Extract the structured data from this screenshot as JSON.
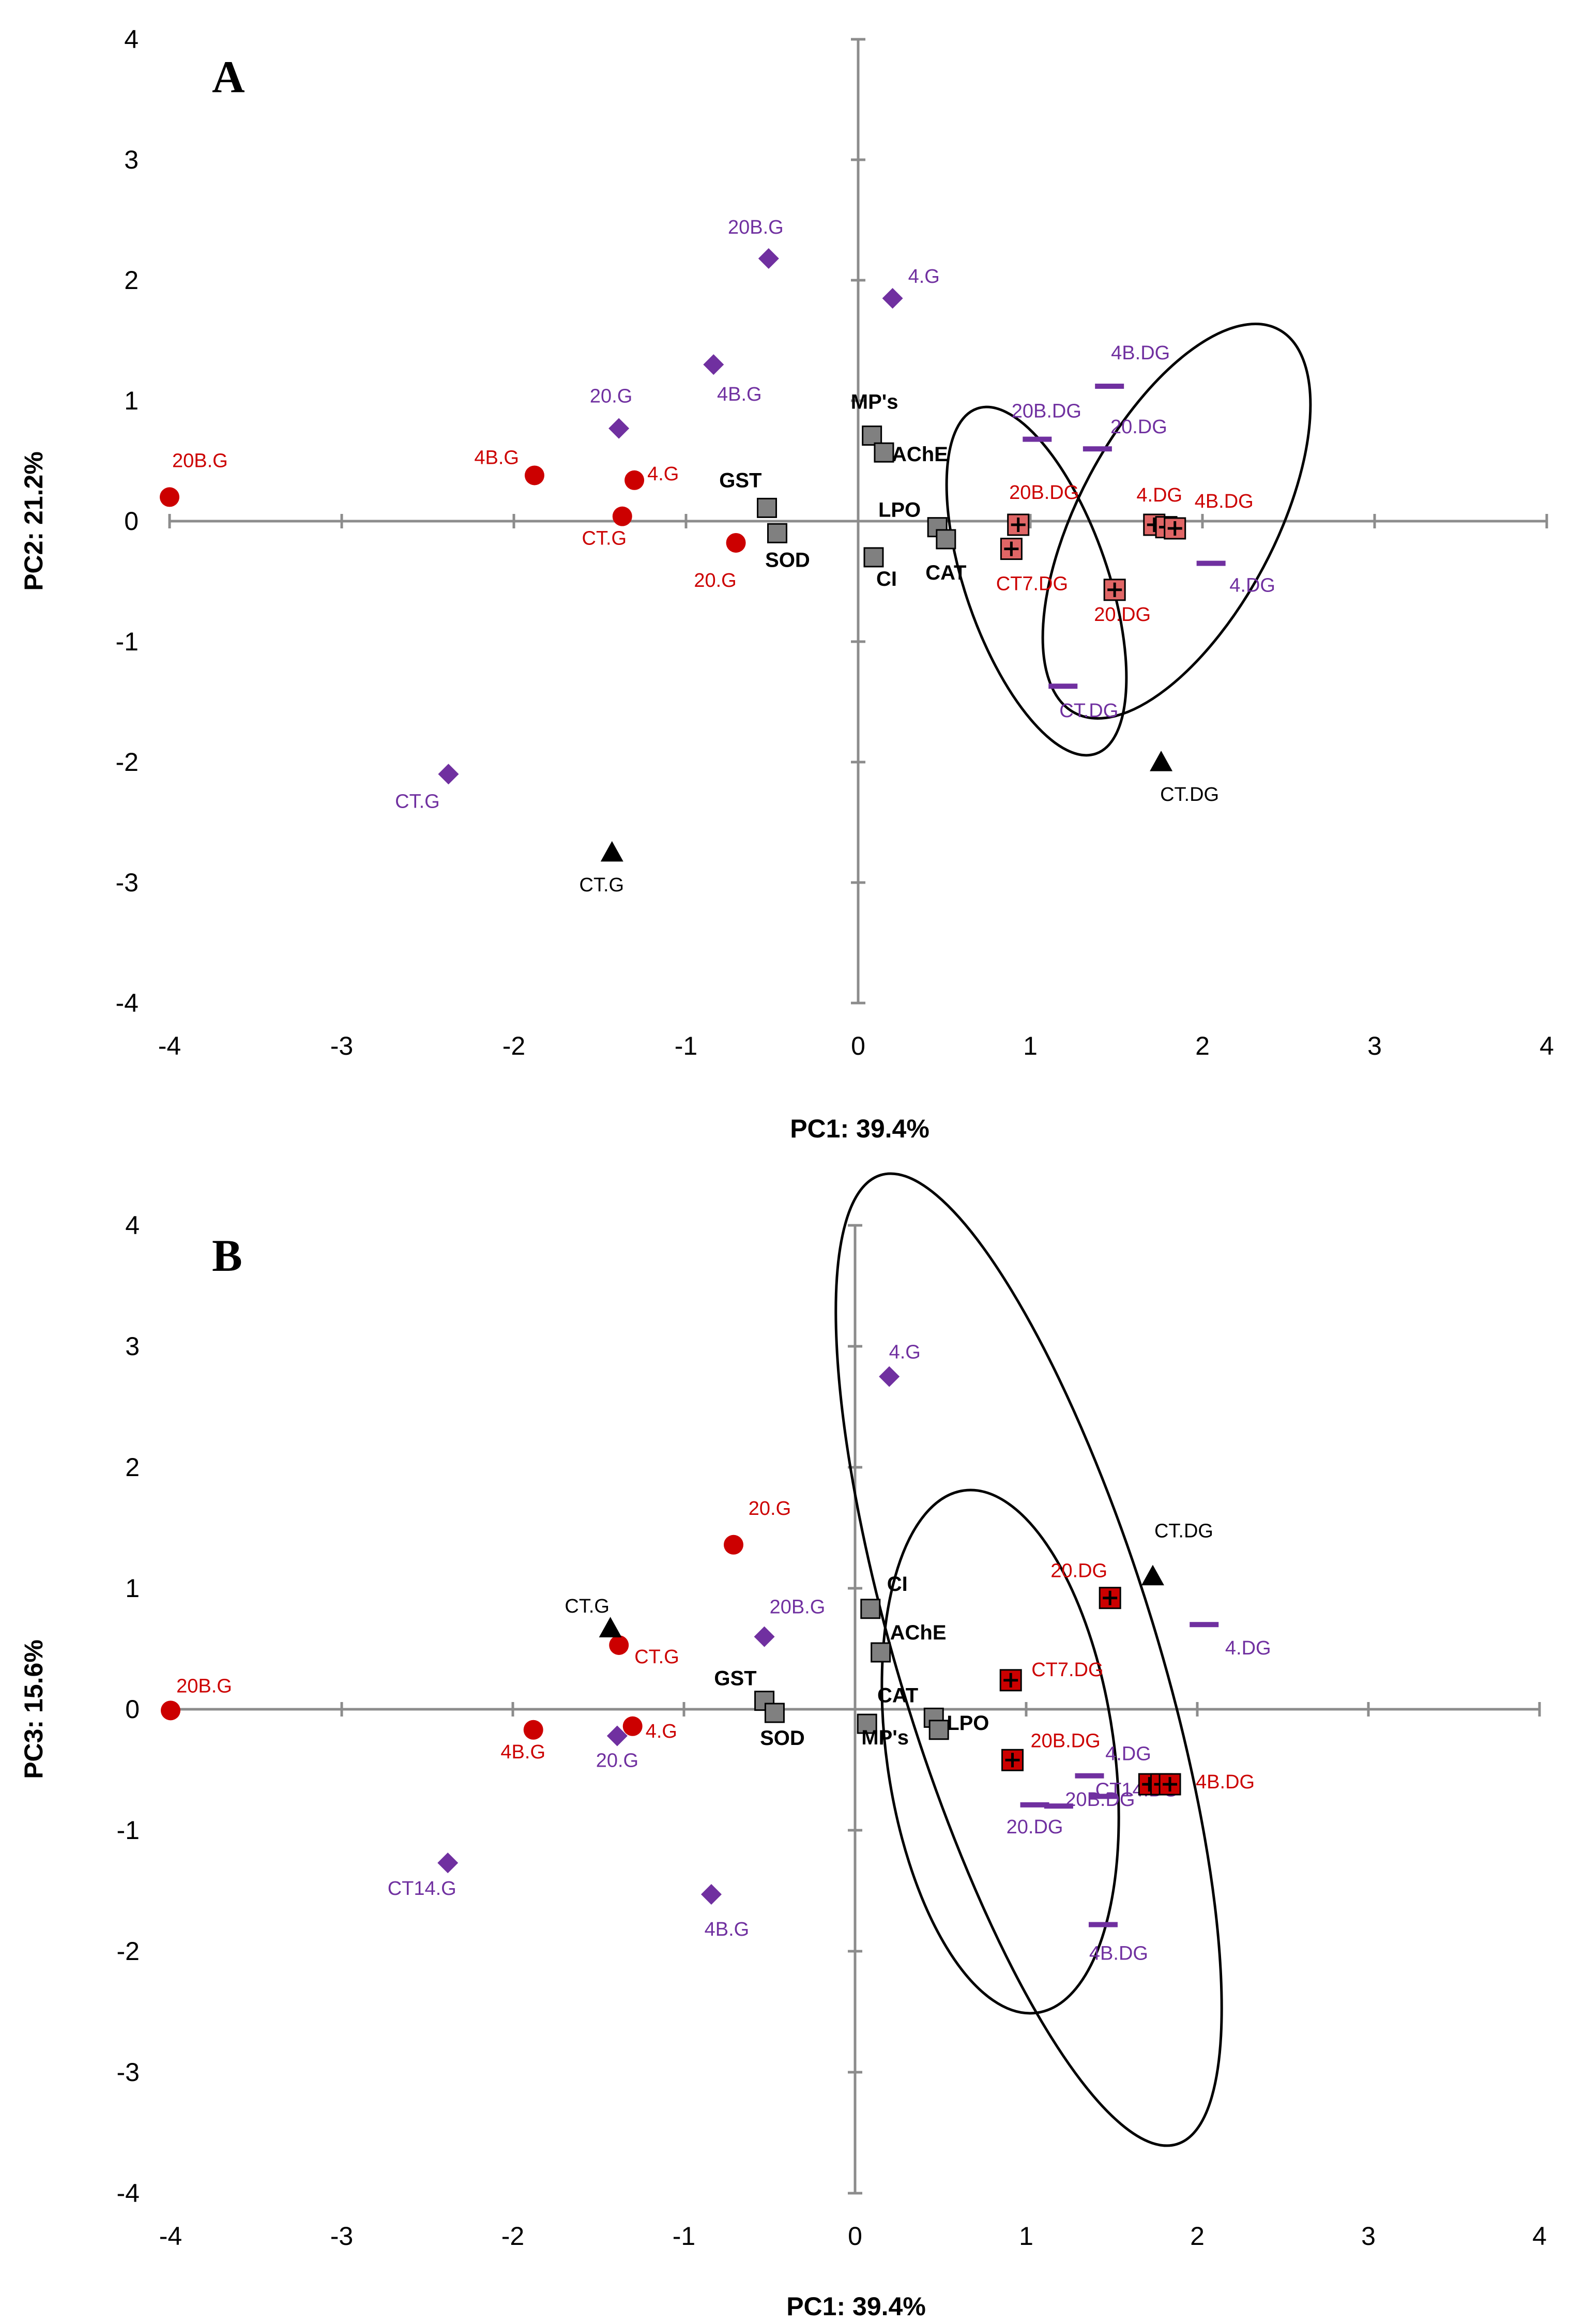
{
  "chart_data": [
    {
      "panel": "A",
      "type": "scatter",
      "xlabel": "PC1: 39.4%",
      "ylabel": "PC2: 21.2%",
      "xlim": [
        -4,
        4
      ],
      "ylim": [
        -4,
        4
      ],
      "xticks": [
        -4,
        -3,
        -2,
        -1,
        0,
        1,
        2,
        3,
        4
      ],
      "yticks": [
        -4,
        -3,
        -2,
        -1,
        0,
        1,
        2,
        3,
        4
      ],
      "colors": {
        "red": "#cc0000",
        "purple": "#7030a0",
        "black": "#000000",
        "gray": "#808080",
        "pinkbox": "#e06666"
      },
      "series": [
        {
          "name": "red circles",
          "marker": "circle",
          "color": "#cc0000",
          "points": [
            {
              "label": "20B.G",
              "x": -4.0,
              "y": 0.2
            },
            {
              "label": "4B.G",
              "x": -1.88,
              "y": 0.38
            },
            {
              "label": "4.G",
              "x": -1.3,
              "y": 0.34
            },
            {
              "label": "CT.G",
              "x": -1.37,
              "y": 0.04
            },
            {
              "label": "20.G",
              "x": -0.71,
              "y": -0.18
            }
          ]
        },
        {
          "name": "purple diamonds",
          "marker": "diamond",
          "color": "#7030a0",
          "points": [
            {
              "label": "20B.G",
              "x": -0.52,
              "y": 2.18
            },
            {
              "label": "4.G",
              "x": 0.2,
              "y": 1.85
            },
            {
              "label": "4B.G",
              "x": -0.84,
              "y": 1.3
            },
            {
              "label": "20.G",
              "x": -1.39,
              "y": 0.77
            },
            {
              "label": "CT.G",
              "x": -2.38,
              "y": -2.1
            }
          ]
        },
        {
          "name": "purple dashes",
          "marker": "dash",
          "color": "#7030a0",
          "points": [
            {
              "label": "4B.DG",
              "x": 1.46,
              "y": 1.12
            },
            {
              "label": "20B.DG",
              "x": 1.04,
              "y": 0.68
            },
            {
              "label": "20.DG",
              "x": 1.39,
              "y": 0.6
            },
            {
              "label": "4.DG",
              "x": 2.05,
              "y": -0.35
            },
            {
              "label": "CT.DG",
              "x": 1.19,
              "y": -1.37
            }
          ]
        },
        {
          "name": "black triangles",
          "marker": "triangle",
          "color": "#000000",
          "points": [
            {
              "label": "CT.DG",
              "x": 1.76,
              "y": -2.0
            },
            {
              "label": "CT.G",
              "x": -1.43,
              "y": -2.75
            }
          ]
        },
        {
          "name": "red plus boxes",
          "marker": "plusbox",
          "color": "#e06666",
          "points": [
            {
              "label": "20B.DG",
              "x": 0.93,
              "y": -0.03
            },
            {
              "label": "CT7.DG",
              "x": 0.89,
              "y": -0.23
            },
            {
              "label": "4.DG",
              "x": 1.72,
              "y": -0.03
            },
            {
              "label": "",
              "x": 1.79,
              "y": -0.05
            },
            {
              "label": "4B.DG",
              "x": 1.84,
              "y": -0.06
            },
            {
              "label": "20.DG",
              "x": 1.49,
              "y": -0.57
            }
          ]
        },
        {
          "name": "variables",
          "marker": "square",
          "color": "#808080",
          "points": [
            {
              "label": "MP's",
              "x": 0.08,
              "y": 0.71
            },
            {
              "label": "AChE",
              "x": 0.15,
              "y": 0.57
            },
            {
              "label": "GST",
              "x": -0.53,
              "y": 0.11
            },
            {
              "label": "SOD",
              "x": -0.47,
              "y": -0.1
            },
            {
              "label": "LPO",
              "x": 0.46,
              "y": -0.05
            },
            {
              "label": "CAT",
              "x": 0.51,
              "y": -0.15
            },
            {
              "label": "CI",
              "x": 0.09,
              "y": -0.3
            }
          ]
        }
      ]
    },
    {
      "panel": "B",
      "type": "scatter",
      "xlabel": "PC1: 39.4%",
      "ylabel": "PC3: 15.6%",
      "xlim": [
        -4,
        4
      ],
      "ylim": [
        -4,
        4
      ],
      "xticks": [
        -4,
        -3,
        -2,
        -1,
        0,
        1,
        2,
        3,
        4
      ],
      "yticks": [
        -4,
        -3,
        -2,
        -1,
        0,
        1,
        2,
        3,
        4
      ],
      "colors": {
        "red": "#cc0000",
        "purple": "#7030a0",
        "black": "#000000",
        "gray": "#808080",
        "redbox": "#cc0000"
      },
      "series": [
        {
          "name": "red circles",
          "marker": "circle",
          "color": "#cc0000",
          "points": [
            {
              "label": "20B.G",
              "x": -4.0,
              "y": -0.01
            },
            {
              "label": "20.G",
              "x": -0.71,
              "y": 1.36
            },
            {
              "label": "CT.G",
              "x": -1.38,
              "y": 0.53
            },
            {
              "label": "4B.G",
              "x": -1.88,
              "y": -0.17
            },
            {
              "label": "4.G",
              "x": -1.3,
              "y": -0.14
            }
          ]
        },
        {
          "name": "purple diamonds",
          "marker": "diamond",
          "color": "#7030a0",
          "points": [
            {
              "label": "4.G",
              "x": 0.2,
              "y": 2.75
            },
            {
              "label": "20B.G",
              "x": -0.53,
              "y": 0.6
            },
            {
              "label": "20.G",
              "x": -1.39,
              "y": -0.22
            },
            {
              "label": "CT14.G",
              "x": -2.38,
              "y": -1.27
            },
            {
              "label": "4B.G",
              "x": -0.84,
              "y": -1.53
            }
          ]
        },
        {
          "name": "purple dashes",
          "marker": "dash",
          "color": "#7030a0",
          "points": [
            {
              "label": "4.DG",
              "x": 2.04,
              "y": 0.7
            },
            {
              "label": "4.DG",
              "x": 1.37,
              "y": -0.55
            },
            {
              "label": "20.DG",
              "x": 1.05,
              "y": -0.79
            },
            {
              "label": "20B.DG",
              "x": 1.19,
              "y": -0.8
            },
            {
              "label": "CT14.DG",
              "x": 1.45,
              "y": -0.72
            },
            {
              "label": "4B.DG",
              "x": 1.45,
              "y": -1.78
            }
          ]
        },
        {
          "name": "black triangles",
          "marker": "triangle",
          "color": "#000000",
          "points": [
            {
              "label": "CT.DG",
              "x": 1.74,
              "y": 1.1
            },
            {
              "label": "CT.G",
              "x": -1.43,
              "y": 0.67
            }
          ]
        },
        {
          "name": "red plus boxes",
          "marker": "plusbox",
          "color": "#cc0000",
          "points": [
            {
              "label": "20.DG",
              "x": 1.49,
              "y": 0.92
            },
            {
              "label": "CT7.DG",
              "x": 0.91,
              "y": 0.24
            },
            {
              "label": "20B.DG",
              "x": 0.92,
              "y": -0.42
            },
            {
              "label": "",
              "x": 1.72,
              "y": -0.62
            },
            {
              "label": "",
              "x": 1.79,
              "y": -0.62
            },
            {
              "label": "4B.DG",
              "x": 1.84,
              "y": -0.62
            }
          ]
        },
        {
          "name": "variables",
          "marker": "square",
          "color": "#808080",
          "points": [
            {
              "label": "CI",
              "x": 0.09,
              "y": 0.83
            },
            {
              "label": "AChE",
              "x": 0.15,
              "y": 0.47
            },
            {
              "label": "GST",
              "x": -0.53,
              "y": 0.07
            },
            {
              "label": "SOD",
              "x": -0.47,
              "y": -0.03
            },
            {
              "label": "CAT",
              "x": 0.46,
              "y": -0.07
            },
            {
              "label": "LPO",
              "x": 0.49,
              "y": -0.17
            },
            {
              "label": "MP's",
              "x": 0.07,
              "y": -0.12
            }
          ]
        }
      ]
    }
  ]
}
